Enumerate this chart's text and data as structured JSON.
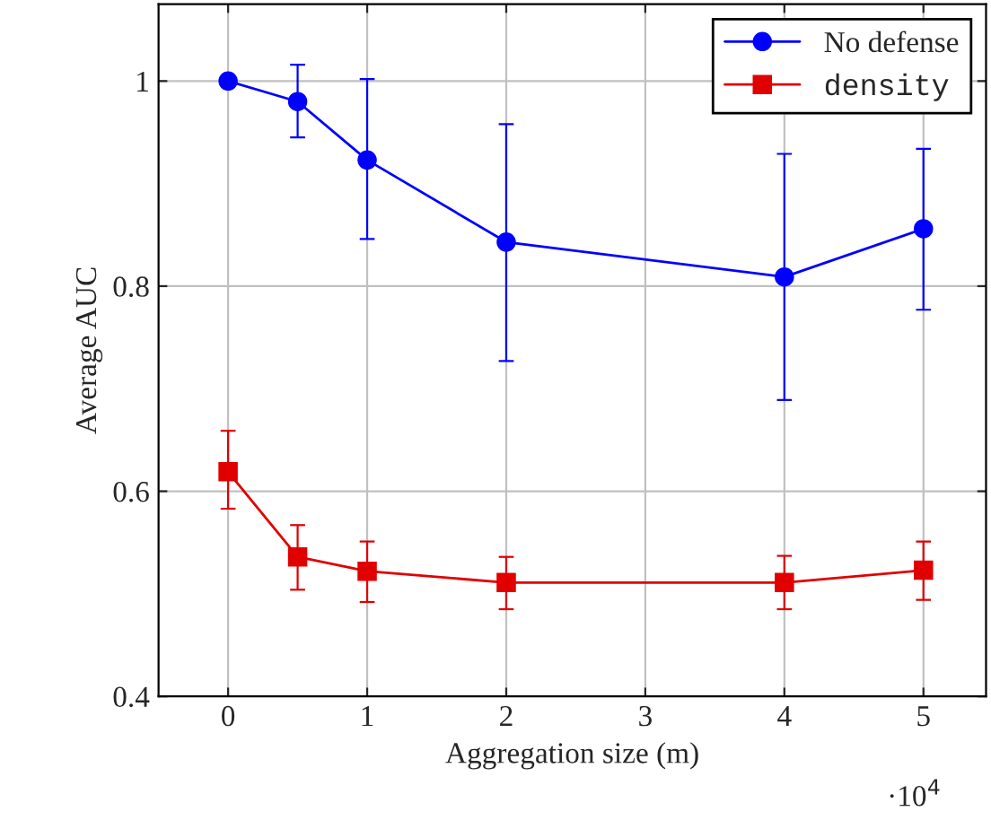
{
  "chart_data": {
    "type": "line",
    "xlabel": "Aggregation size (m)",
    "ylabel": "Average AUC",
    "x": [
      0,
      0.5,
      1,
      2,
      4,
      5
    ],
    "series": [
      {
        "name": "No defense",
        "color": "#0000ff",
        "marker": "circle",
        "values": [
          1.0,
          0.98,
          0.923,
          0.843,
          0.809,
          0.856
        ],
        "errors": [
          null,
          [
            0.945,
            1.016
          ],
          [
            0.846,
            1.002
          ],
          [
            0.727,
            0.958
          ],
          [
            0.689,
            0.929
          ],
          [
            0.777,
            0.934
          ]
        ]
      },
      {
        "name": "density",
        "color": "#e00000",
        "marker": "square",
        "values": [
          0.619,
          0.536,
          0.522,
          0.511,
          0.511,
          0.523
        ],
        "errors": [
          [
            0.583,
            0.659
          ],
          [
            0.504,
            0.567
          ],
          [
            0.492,
            0.551
          ],
          [
            0.485,
            0.536
          ],
          [
            0.485,
            0.537
          ],
          [
            0.494,
            0.551
          ]
        ]
      }
    ],
    "xlim": [
      -0.5,
      5.45
    ],
    "ylim": [
      0.4,
      1.075
    ],
    "xticks": [
      0,
      1,
      2,
      3,
      4,
      5
    ],
    "yticks": [
      0.4,
      0.6,
      0.8,
      {
        "value": 1.0,
        "label": "1"
      }
    ],
    "annotations": [
      "·10$^{4}$"
    ],
    "grid": true,
    "legend": "top right",
    "line_style": "solid"
  }
}
